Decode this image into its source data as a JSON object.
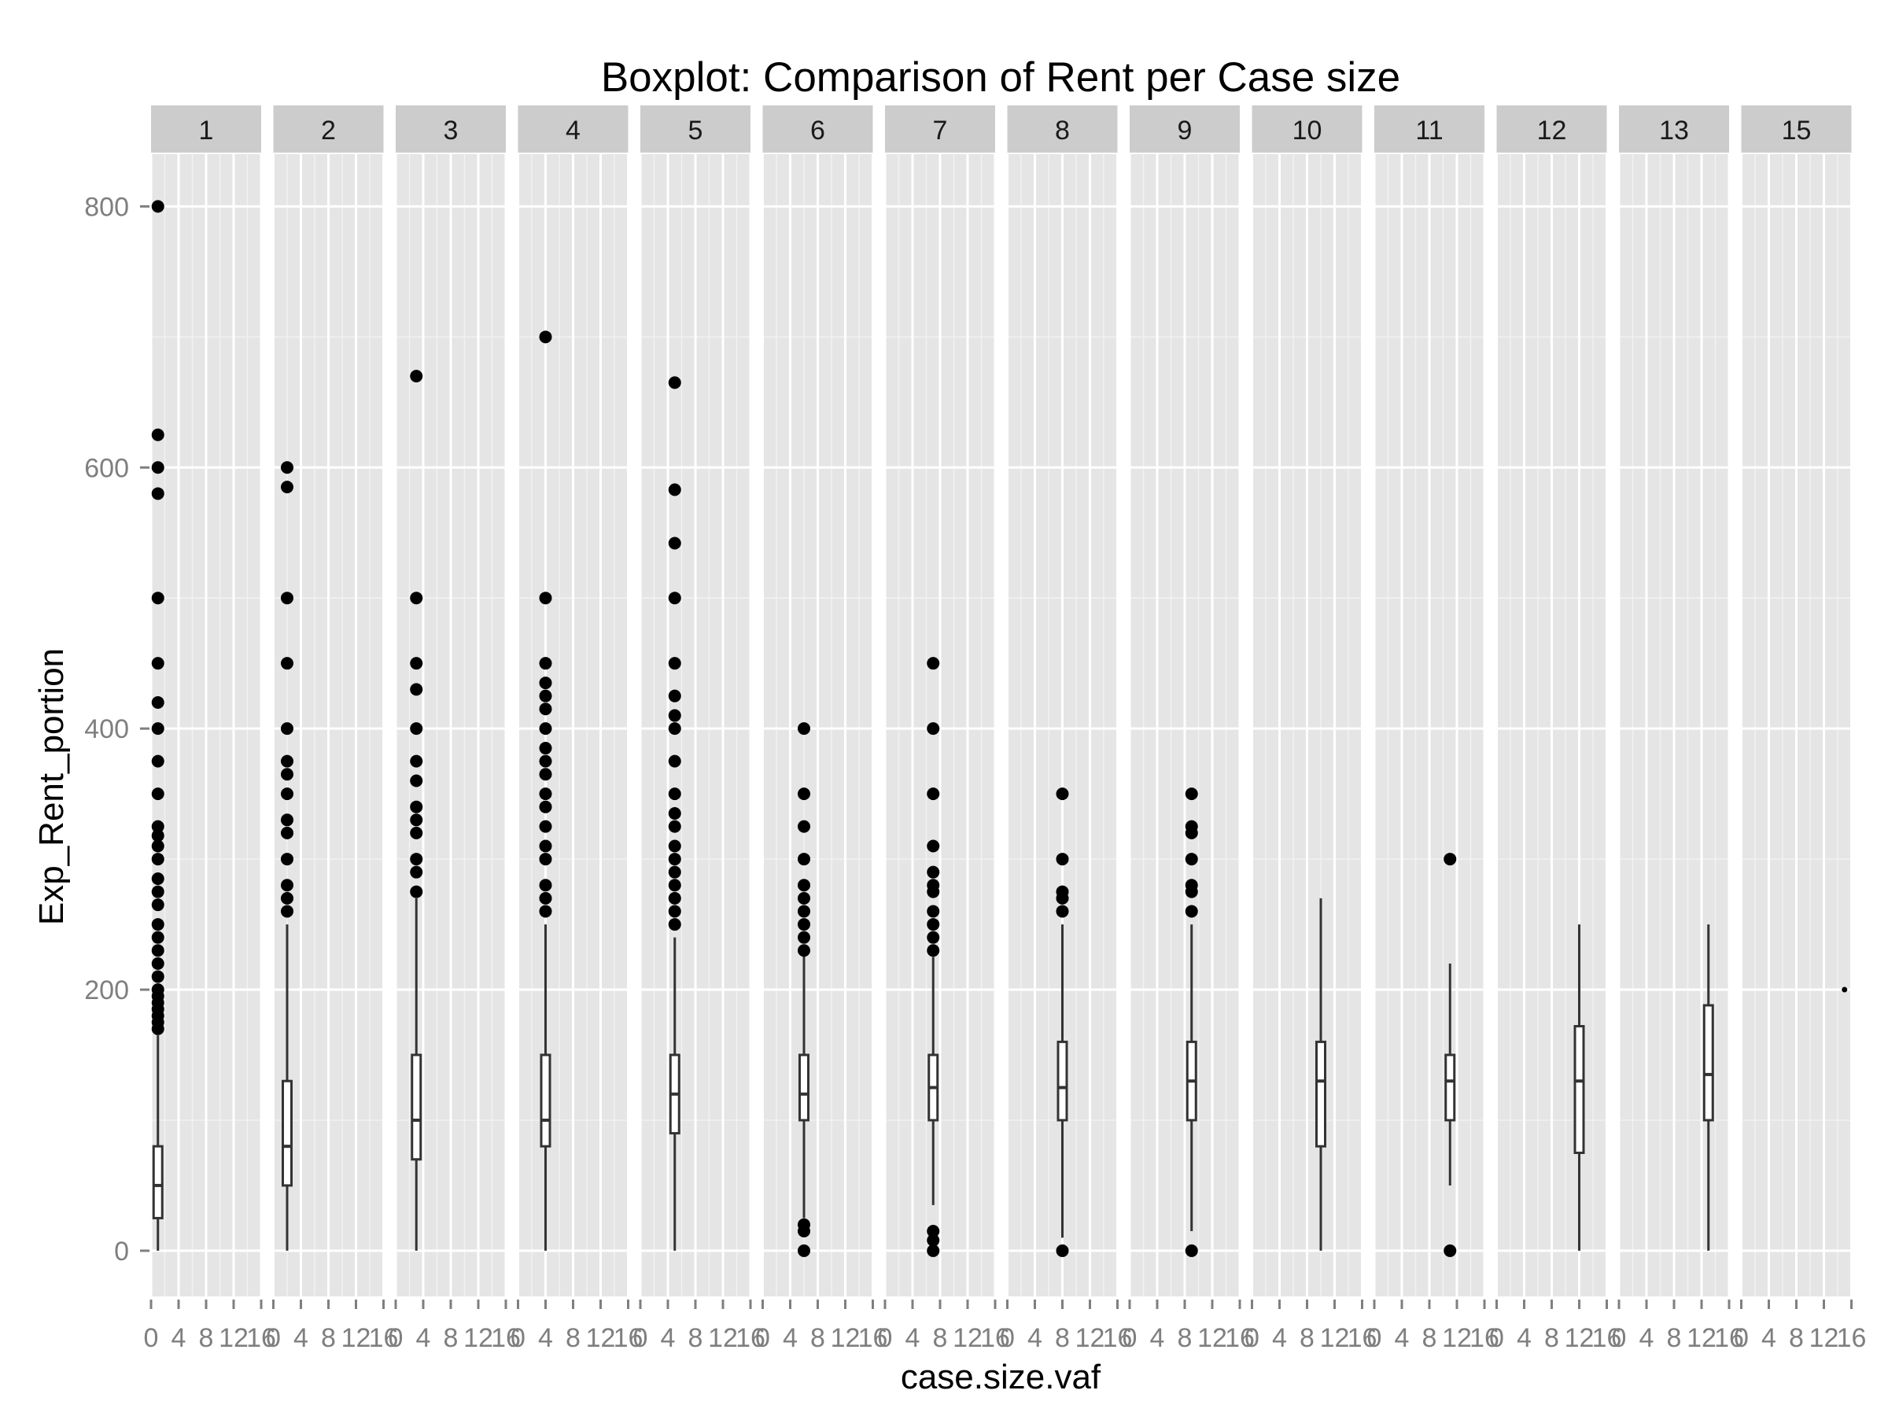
{
  "chart_data": {
    "type": "boxplot",
    "title": "Boxplot: Comparison of Rent per Case size",
    "xlabel": "case.size.vaf",
    "ylabel": "Exp_Rent_portion",
    "ylim": [
      -35,
      840
    ],
    "xlim": [
      0,
      16
    ],
    "y_ticks": [
      0,
      200,
      400,
      600,
      800
    ],
    "x_ticks": [
      0,
      4,
      8,
      12,
      16
    ],
    "x_tick_labels": [
      "0",
      "4",
      "8",
      "12",
      "16"
    ],
    "facet_variable": "case.size",
    "grid": true,
    "panel_background": "#e5e5e5",
    "strip_background": "#cccccc",
    "gridline_color": "#ffffff",
    "mark_color": "#000000",
    "panels": [
      {
        "label": "1",
        "x": 1,
        "box": {
          "low": 0,
          "q1": 25,
          "median": 50,
          "q3": 80,
          "high": 165
        },
        "outliers": [
          170,
          175,
          180,
          185,
          190,
          195,
          200,
          210,
          220,
          230,
          240,
          250,
          265,
          275,
          285,
          300,
          310,
          318,
          325,
          350,
          375,
          400,
          420,
          450,
          500,
          580,
          600,
          625,
          800
        ]
      },
      {
        "label": "2",
        "x": 2,
        "box": {
          "low": 0,
          "q1": 50,
          "median": 80,
          "q3": 130,
          "high": 250
        },
        "outliers": [
          260,
          270,
          280,
          300,
          320,
          330,
          350,
          365,
          375,
          400,
          450,
          500,
          585,
          600
        ]
      },
      {
        "label": "3",
        "x": 3,
        "box": {
          "low": 0,
          "q1": 70,
          "median": 100,
          "q3": 150,
          "high": 270
        },
        "outliers": [
          275,
          290,
          300,
          320,
          330,
          340,
          360,
          375,
          400,
          430,
          450,
          500,
          670
        ]
      },
      {
        "label": "4",
        "x": 4,
        "box": {
          "low": 0,
          "q1": 80,
          "median": 100,
          "q3": 150,
          "high": 250
        },
        "outliers": [
          260,
          270,
          280,
          300,
          310,
          325,
          340,
          350,
          365,
          375,
          385,
          400,
          415,
          425,
          435,
          450,
          500,
          700
        ]
      },
      {
        "label": "5",
        "x": 5,
        "box": {
          "low": 0,
          "q1": 90,
          "median": 120,
          "q3": 150,
          "high": 240
        },
        "outliers": [
          250,
          260,
          270,
          280,
          290,
          300,
          310,
          325,
          335,
          350,
          375,
          400,
          410,
          425,
          450,
          500,
          542,
          583,
          665
        ]
      },
      {
        "label": "6",
        "x": 6,
        "box": {
          "low": 25,
          "q1": 100,
          "median": 120,
          "q3": 150,
          "high": 228
        },
        "outliers": [
          0,
          15,
          20,
          230,
          240,
          250,
          260,
          270,
          280,
          300,
          325,
          350,
          400
        ]
      },
      {
        "label": "7",
        "x": 7,
        "box": {
          "low": 35,
          "q1": 100,
          "median": 125,
          "q3": 150,
          "high": 225
        },
        "outliers": [
          0,
          8,
          15,
          230,
          240,
          250,
          260,
          275,
          280,
          290,
          310,
          350,
          400,
          450
        ]
      },
      {
        "label": "8",
        "x": 8,
        "box": {
          "low": 10,
          "q1": 100,
          "median": 125,
          "q3": 160,
          "high": 250
        },
        "outliers": [
          0,
          260,
          270,
          275,
          300,
          350
        ]
      },
      {
        "label": "9",
        "x": 9,
        "box": {
          "low": 15,
          "q1": 100,
          "median": 130,
          "q3": 160,
          "high": 250
        },
        "outliers": [
          0,
          260,
          275,
          280,
          300,
          320,
          325,
          350
        ]
      },
      {
        "label": "10",
        "x": 10,
        "box": {
          "low": 0,
          "q1": 80,
          "median": 130,
          "q3": 160,
          "high": 270
        },
        "outliers": []
      },
      {
        "label": "11",
        "x": 11,
        "box": {
          "low": 50,
          "q1": 100,
          "median": 130,
          "q3": 150,
          "high": 220
        },
        "outliers": [
          0,
          300
        ]
      },
      {
        "label": "12",
        "x": 12,
        "box": {
          "low": 0,
          "q1": 75,
          "median": 130,
          "q3": 172,
          "high": 250
        },
        "outliers": []
      },
      {
        "label": "13",
        "x": 13,
        "box": {
          "low": 0,
          "q1": 100,
          "median": 135,
          "q3": 188,
          "high": 250
        },
        "outliers": []
      },
      {
        "label": "15",
        "x": 15,
        "box": {
          "low": 200,
          "q1": 200,
          "median": 200,
          "q3": 200,
          "high": 200
        },
        "outliers": []
      }
    ]
  }
}
